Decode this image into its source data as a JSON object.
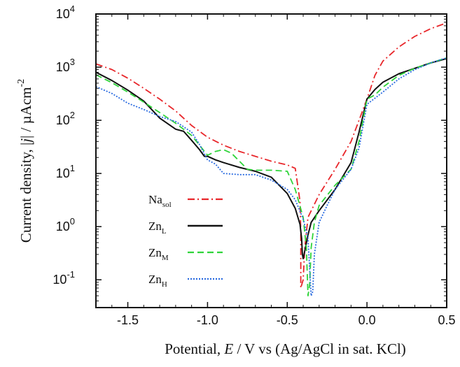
{
  "chart_data": {
    "type": "line",
    "xlabel": {
      "pre": "Potential, ",
      "var": "E",
      "post": " / V vs (Ag/AgCl in sat. KCl)"
    },
    "ylabel": {
      "pre": "Current density, |",
      "var": "j",
      "post": "| / µAcm",
      "sup": "-2"
    },
    "xlim": [
      -1.7,
      0.5
    ],
    "ylim": [
      0.03,
      10000
    ],
    "yscale": "log",
    "grid": false,
    "legend_position": "lower-left",
    "x_ticks": [
      {
        "value": -1.5,
        "label": "-1.5"
      },
      {
        "value": -1.0,
        "label": "-1.0"
      },
      {
        "value": -0.5,
        "label": "-0.5"
      },
      {
        "value": 0.0,
        "label": "0.0"
      },
      {
        "value": 0.5,
        "label": "0.5"
      }
    ],
    "y_ticks": [
      {
        "value": 0.1,
        "base": "10",
        "exp": "-1"
      },
      {
        "value": 1,
        "base": "10",
        "exp": "0"
      },
      {
        "value": 10,
        "base": "10",
        "exp": "1"
      },
      {
        "value": 100,
        "base": "10",
        "exp": "2"
      },
      {
        "value": 1000,
        "base": "10",
        "exp": "3"
      },
      {
        "value": 10000,
        "base": "10",
        "exp": "4"
      }
    ],
    "series": [
      {
        "name": "Na",
        "sub": "sol",
        "color": "#e8262a",
        "dash": "dash-dot",
        "points": [
          [
            -1.7,
            1150
          ],
          [
            -1.6,
            900
          ],
          [
            -1.5,
            620
          ],
          [
            -1.4,
            400
          ],
          [
            -1.3,
            250
          ],
          [
            -1.2,
            150
          ],
          [
            -1.1,
            80
          ],
          [
            -1.0,
            48
          ],
          [
            -0.9,
            34
          ],
          [
            -0.8,
            26
          ],
          [
            -0.7,
            21
          ],
          [
            -0.6,
            17
          ],
          [
            -0.5,
            14.5
          ],
          [
            -0.45,
            12.5
          ],
          [
            -0.42,
            3
          ],
          [
            -0.415,
            0.8
          ],
          [
            -0.415,
            0.07
          ],
          [
            -0.4,
            0.1
          ],
          [
            -0.39,
            0.4
          ],
          [
            -0.37,
            1.5
          ],
          [
            -0.3,
            4
          ],
          [
            -0.2,
            12
          ],
          [
            -0.1,
            40
          ],
          [
            -0.05,
            100
          ],
          [
            0.0,
            250
          ],
          [
            0.05,
            700
          ],
          [
            0.1,
            1300
          ],
          [
            0.2,
            2400
          ],
          [
            0.3,
            3800
          ],
          [
            0.4,
            5300
          ],
          [
            0.5,
            6800
          ]
        ]
      },
      {
        "name": "Zn",
        "sub": "L",
        "color": "#111111",
        "dash": "solid",
        "points": [
          [
            -1.7,
            800
          ],
          [
            -1.6,
            560
          ],
          [
            -1.5,
            370
          ],
          [
            -1.4,
            230
          ],
          [
            -1.3,
            110
          ],
          [
            -1.2,
            68
          ],
          [
            -1.15,
            62
          ],
          [
            -1.1,
            42
          ],
          [
            -1.05,
            28
          ],
          [
            -1.02,
            21
          ],
          [
            -1.0,
            21
          ],
          [
            -0.95,
            18
          ],
          [
            -0.9,
            16
          ],
          [
            -0.8,
            13
          ],
          [
            -0.7,
            11
          ],
          [
            -0.6,
            8.5
          ],
          [
            -0.5,
            4.2
          ],
          [
            -0.45,
            2.2
          ],
          [
            -0.42,
            1.1
          ],
          [
            -0.41,
            0.6
          ],
          [
            -0.405,
            0.3
          ],
          [
            -0.4,
            0.25
          ],
          [
            -0.39,
            0.35
          ],
          [
            -0.37,
            0.7
          ],
          [
            -0.35,
            1.2
          ],
          [
            -0.3,
            2
          ],
          [
            -0.2,
            5
          ],
          [
            -0.1,
            16
          ],
          [
            -0.05,
            60
          ],
          [
            0.0,
            250
          ],
          [
            0.05,
            380
          ],
          [
            0.1,
            520
          ],
          [
            0.2,
            750
          ],
          [
            0.3,
            950
          ],
          [
            0.4,
            1200
          ],
          [
            0.5,
            1450
          ]
        ]
      },
      {
        "name": "Zn",
        "sub": "M",
        "color": "#2fd43a",
        "dash": "dashed",
        "points": [
          [
            -1.7,
            720
          ],
          [
            -1.6,
            510
          ],
          [
            -1.5,
            340
          ],
          [
            -1.4,
            220
          ],
          [
            -1.3,
            140
          ],
          [
            -1.2,
            88
          ],
          [
            -1.1,
            52
          ],
          [
            -1.05,
            34
          ],
          [
            -1.0,
            22
          ],
          [
            -0.95,
            26
          ],
          [
            -0.9,
            28
          ],
          [
            -0.85,
            24
          ],
          [
            -0.8,
            17
          ],
          [
            -0.75,
            12
          ],
          [
            -0.7,
            11.5
          ],
          [
            -0.6,
            11.5
          ],
          [
            -0.5,
            11
          ],
          [
            -0.45,
            5
          ],
          [
            -0.4,
            1.5
          ],
          [
            -0.38,
            0.4
          ],
          [
            -0.37,
            0.05
          ],
          [
            -0.36,
            0.08
          ],
          [
            -0.35,
            0.4
          ],
          [
            -0.33,
            1.2
          ],
          [
            -0.3,
            2.5
          ],
          [
            -0.2,
            6
          ],
          [
            -0.1,
            12
          ],
          [
            -0.05,
            40
          ],
          [
            0.0,
            250
          ],
          [
            0.05,
            300
          ],
          [
            0.1,
            420
          ],
          [
            0.2,
            700
          ],
          [
            0.3,
            950
          ],
          [
            0.4,
            1200
          ],
          [
            0.5,
            1500
          ]
        ]
      },
      {
        "name": "Zn",
        "sub": "H",
        "color": "#2a6be0",
        "dash": "dotted",
        "points": [
          [
            -1.7,
            430
          ],
          [
            -1.6,
            320
          ],
          [
            -1.5,
            210
          ],
          [
            -1.4,
            160
          ],
          [
            -1.3,
            118
          ],
          [
            -1.2,
            95
          ],
          [
            -1.1,
            60
          ],
          [
            -1.05,
            35
          ],
          [
            -1.0,
            18
          ],
          [
            -0.95,
            15
          ],
          [
            -0.9,
            10
          ],
          [
            -0.8,
            9.5
          ],
          [
            -0.7,
            9.5
          ],
          [
            -0.6,
            7.5
          ],
          [
            -0.5,
            5
          ],
          [
            -0.45,
            3.2
          ],
          [
            -0.4,
            1.4
          ],
          [
            -0.37,
            0.6
          ],
          [
            -0.35,
            0.05
          ],
          [
            -0.34,
            0.06
          ],
          [
            -0.33,
            0.3
          ],
          [
            -0.3,
            1.2
          ],
          [
            -0.25,
            2.5
          ],
          [
            -0.2,
            5
          ],
          [
            -0.1,
            12
          ],
          [
            -0.05,
            30
          ],
          [
            0.0,
            200
          ],
          [
            0.05,
            260
          ],
          [
            0.1,
            340
          ],
          [
            0.2,
            600
          ],
          [
            0.3,
            900
          ],
          [
            0.4,
            1200
          ],
          [
            0.5,
            1500
          ]
        ]
      }
    ]
  }
}
